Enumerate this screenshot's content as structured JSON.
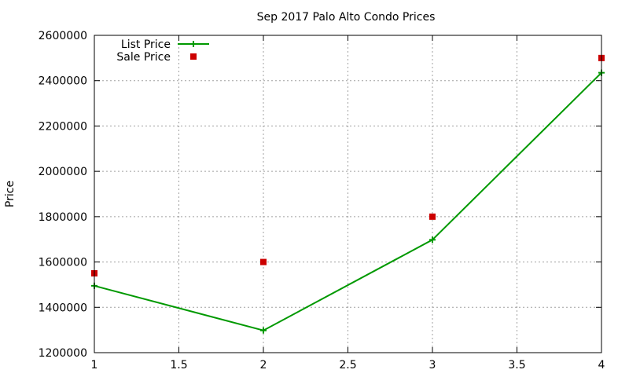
{
  "chart_data": {
    "type": "line",
    "title": "Sep 2017 Palo Alto Condo Prices",
    "xlabel": "",
    "ylabel": "Price",
    "xlim": [
      1,
      4
    ],
    "ylim": [
      1200000,
      2600000
    ],
    "x_ticks": [
      1,
      1.5,
      2,
      2.5,
      3,
      3.5,
      4
    ],
    "x_tick_labels": [
      "1",
      "1.5",
      "2",
      "2.5",
      "3",
      "3.5",
      "4"
    ],
    "y_ticks": [
      1200000,
      1400000,
      1600000,
      1800000,
      2000000,
      2200000,
      2400000,
      2600000
    ],
    "y_tick_labels": [
      "1200000",
      "1400000",
      "1600000",
      "1800000",
      "2000000",
      "2200000",
      "2400000",
      "2600000"
    ],
    "grid": true,
    "legend_position": "top-left",
    "series": [
      {
        "name": "List Price",
        "style": "lines+points",
        "marker": "plus",
        "color": "#009900",
        "x": [
          1,
          2,
          3,
          4
        ],
        "y": [
          1495000,
          1298000,
          1698000,
          2435000
        ]
      },
      {
        "name": "Sale Price",
        "style": "points",
        "marker": "square",
        "color": "#cc0000",
        "x": [
          1,
          2,
          3,
          4
        ],
        "y": [
          1550000,
          1600000,
          1800000,
          2500000
        ]
      }
    ]
  }
}
